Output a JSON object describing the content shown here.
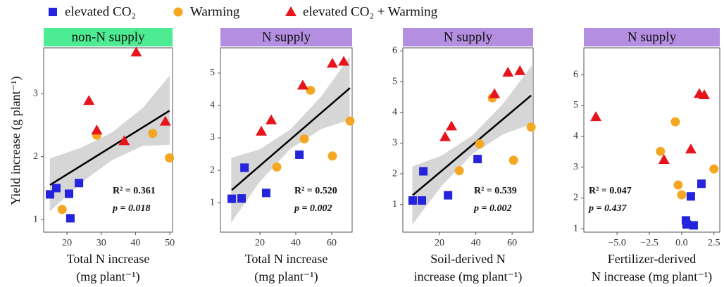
{
  "legend": [
    {
      "name": "elevated CO₂",
      "color": "#2424dd",
      "marker": "square"
    },
    {
      "name": "Warming",
      "color": "#f5a623",
      "marker": "circle"
    },
    {
      "name": "elevated CO₂ + Warming",
      "color": "#e8141c",
      "marker": "triangle"
    }
  ],
  "y_label": "Yield increase (g plant⁻¹)",
  "chart_data": [
    {
      "type": "scatter",
      "strip": "non-N supply",
      "strip_color": "#4deb92",
      "xlabel": [
        "Total N increase",
        "(mg plant⁻¹)"
      ],
      "xlim": [
        13.2,
        50.8
      ],
      "xticks": [
        20,
        30,
        40,
        50
      ],
      "ylim": [
        0.8,
        3.73
      ],
      "yticks": [
        1,
        2,
        3
      ],
      "series": [
        {
          "x": [
            15.05,
            16.9,
            20.6,
            23.5,
            21.0
          ],
          "values": [
            1.4,
            1.5,
            1.41,
            1.58,
            1.02
          ]
        },
        {
          "x": [
            28.7,
            18.6,
            45.0,
            49.9
          ],
          "values": [
            2.34,
            1.16,
            2.37,
            1.98
          ]
        },
        {
          "x": [
            26.4,
            28.7,
            36.7,
            40.2,
            48.7
          ],
          "values": [
            2.89,
            2.42,
            2.25,
            3.66,
            2.56
          ]
        }
      ],
      "fit": {
        "x": [
          15.05,
          49.9
        ],
        "y": [
          1.55,
          2.73
        ]
      },
      "ci": {
        "x": [
          15,
          24,
          33,
          42,
          50
        ],
        "lower": [
          1.13,
          1.58,
          1.94,
          2.17,
          2.19
        ],
        "upper": [
          1.97,
          2.14,
          2.38,
          2.77,
          3.29
        ]
      },
      "stats": [
        "R² = 0.361",
        "p = 0.018"
      ]
    },
    {
      "type": "scatter",
      "strip": "N supply",
      "strip_color": "#b48ee0",
      "xlabel": [
        "Total N increase",
        "(mg plant⁻¹)"
      ],
      "xlim": [
        -2,
        71.4
      ],
      "xticks": [
        20,
        40,
        60
      ],
      "ylim": [
        0.09,
        5.78
      ],
      "yticks": [
        1,
        2,
        3,
        4,
        5
      ],
      "series": [
        {
          "x": [
            4.3,
            9.8,
            11.4,
            23.5,
            42
          ],
          "values": [
            1.12,
            1.13,
            2.08,
            1.3,
            2.48
          ]
        },
        {
          "x": [
            29.4,
            44.7,
            48.2,
            60.4,
            70.2
          ],
          "values": [
            2.1,
            2.97,
            4.47,
            2.44,
            3.52
          ]
        },
        {
          "x": [
            20.8,
            26.3,
            43.9,
            60.4,
            66.7
          ],
          "values": [
            3.2,
            3.55,
            4.62,
            5.3,
            5.36
          ]
        }
      ],
      "fit": {
        "x": [
          4.3,
          70.2
        ],
        "y": [
          1.39,
          4.54
        ]
      },
      "ci": {
        "x": [
          4,
          20,
          37,
          54,
          70
        ],
        "lower": [
          0.38,
          1.65,
          2.66,
          3.27,
          3.56
        ],
        "upper": [
          2.38,
          2.65,
          3.26,
          4.27,
          5.5
        ]
      },
      "stats": [
        "R² = 0.520",
        "p = 0.002"
      ]
    },
    {
      "type": "scatter",
      "strip": "N supply",
      "strip_color": "#b48ee0",
      "xlabel": [
        "Soil-derived N",
        "increase (mg plant⁻¹)"
      ],
      "xlim": [
        -0.2,
        71.6
      ],
      "xticks": [
        20,
        40,
        60
      ],
      "ylim": [
        0.1,
        6.1
      ],
      "yticks": [
        1,
        2,
        3,
        4,
        5,
        6
      ],
      "series": [
        {
          "x": [
            5.2,
            10.3,
            11.1,
            24.7,
            41
          ],
          "values": [
            1.13,
            1.13,
            2.08,
            1.3,
            2.48
          ]
        },
        {
          "x": [
            30.9,
            42.1,
            49.1,
            60.8,
            70.5
          ],
          "values": [
            2.1,
            2.97,
            4.47,
            2.44,
            3.52
          ]
        },
        {
          "x": [
            23.1,
            26.6,
            50.3,
            57.7,
            64.3
          ],
          "values": [
            3.2,
            3.55,
            4.6,
            5.3,
            5.35
          ]
        }
      ],
      "fit": {
        "x": [
          5.2,
          70.5
        ],
        "y": [
          1.3,
          4.55
        ]
      },
      "ci": {
        "x": [
          5,
          21,
          38,
          55,
          71
        ],
        "lower": [
          0.34,
          1.59,
          2.64,
          3.28,
          3.63
        ],
        "upper": [
          2.24,
          2.59,
          3.24,
          4.28,
          5.53
        ]
      },
      "stats": [
        "R² = 0.539",
        "p = 0.002"
      ]
    },
    {
      "type": "scatter",
      "strip": "N supply",
      "strip_color": "#b48ee0",
      "xlabel": [
        "Fertilizer-derived",
        "N increase (mg plant⁻¹)"
      ],
      "xlim": [
        -7.57,
        2.95
      ],
      "xticks": [
        {
          "value": -5,
          "label": "−5.0"
        },
        {
          "value": -2.5,
          "label": "−2.5"
        },
        {
          "value": 0,
          "label": "0.0"
        },
        2.5
      ],
      "ylim": [
        0.89,
        6.87
      ],
      "yticks": [
        1,
        2,
        3,
        4,
        5,
        6
      ],
      "series": [
        {
          "x": [
            0.33,
            0.38,
            0.93,
            0.71,
            1.53
          ],
          "values": [
            1.27,
            1.14,
            1.11,
            2.05,
            2.46
          ]
        },
        {
          "x": [
            -0.49,
            -1.64,
            -0.27,
            0,
            2.5
          ],
          "values": [
            4.47,
            3.51,
            2.42,
            2.1,
            2.94
          ]
        },
        {
          "x": [
            -6.64,
            -1.37,
            0.71,
            1.37,
            1.75
          ],
          "values": [
            4.63,
            3.24,
            3.58,
            5.38,
            5.34
          ]
        }
      ],
      "stats": [
        "R² = 0.047",
        "p = 0.437"
      ]
    }
  ]
}
